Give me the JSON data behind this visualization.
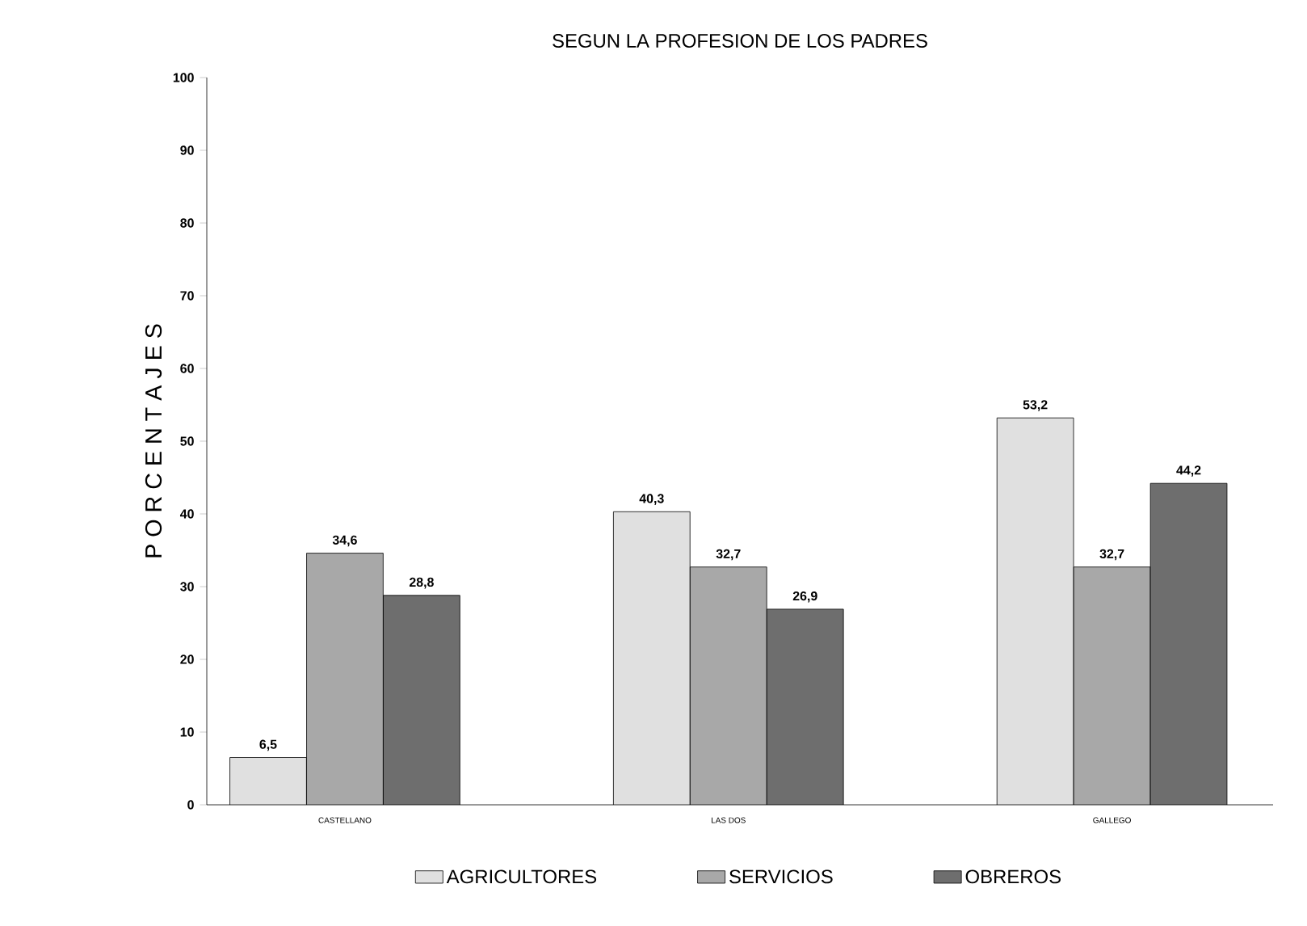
{
  "chart_data": {
    "type": "bar",
    "title": "SEGUN LA PROFESION DE LOS PADRES",
    "ylabel": "P O R C E N T A J E S",
    "categories": [
      "CASTELLANO",
      "LAS DOS",
      "GALLEGO"
    ],
    "series": [
      {
        "name": "AGRICULTORES",
        "color": "#e0e0e0",
        "values": [
          6.5,
          40.3,
          53.2
        ],
        "value_labels": [
          "6,5",
          "40,3",
          "53,2"
        ]
      },
      {
        "name": "SERVICIOS",
        "color": "#a8a8a8",
        "values": [
          34.6,
          32.7,
          32.7
        ],
        "value_labels": [
          "34,6",
          "32,7",
          "32,7"
        ]
      },
      {
        "name": "OBREROS",
        "color": "#6e6e6e",
        "values": [
          28.8,
          26.9,
          44.2
        ],
        "value_labels": [
          "28,8",
          "26,9",
          "44,2"
        ]
      }
    ],
    "ylim": [
      0,
      100
    ],
    "yticks": [
      0,
      10,
      20,
      30,
      40,
      50,
      60,
      70,
      80,
      90,
      100
    ],
    "grid": false,
    "legend": "bottom"
  }
}
